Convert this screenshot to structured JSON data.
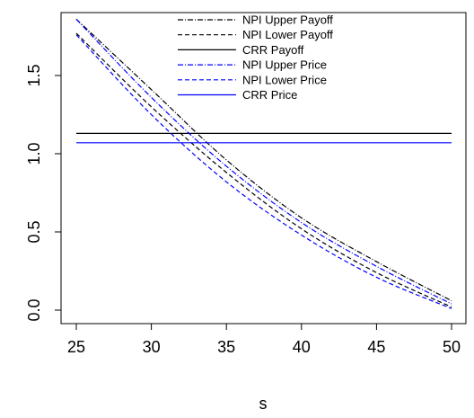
{
  "chart_data": {
    "type": "line",
    "title": "",
    "xlabel": "s",
    "ylabel": "",
    "xlim": [
      25,
      50
    ],
    "ylim": [
      0,
      1.85
    ],
    "x_ticks": [
      25,
      30,
      35,
      40,
      45,
      50
    ],
    "x_tick_labels": [
      "25",
      "30",
      "35",
      "40",
      "45",
      "50"
    ],
    "y_ticks": [
      0.0,
      0.5,
      1.0,
      1.5
    ],
    "y_tick_labels": [
      "0.0",
      "0.5",
      "1.0",
      "1.5"
    ],
    "grid": false,
    "legend_position": "top-center",
    "x": [
      25,
      30,
      35,
      40,
      45,
      50
    ],
    "series": [
      {
        "name": "NPI Upper Payoff",
        "color": "#000000",
        "dash": "dotdash",
        "values": [
          1.86,
          1.41,
          0.96,
          0.59,
          0.31,
          0.06
        ]
      },
      {
        "name": "NPI Lower Payoff",
        "color": "#000000",
        "dash": "dashed",
        "values": [
          1.77,
          1.3,
          0.88,
          0.52,
          0.24,
          0.02
        ]
      },
      {
        "name": "CRR Payoff",
        "color": "#000000",
        "dash": "solid",
        "values": [
          1.13,
          1.13,
          1.13,
          1.13,
          1.13,
          1.13
        ]
      },
      {
        "name": "NPI Upper Price",
        "color": "#0000ff",
        "dash": "dotdash",
        "values": [
          1.86,
          1.36,
          0.92,
          0.56,
          0.28,
          0.04
        ]
      },
      {
        "name": "NPI Lower Price",
        "color": "#0000ff",
        "dash": "dashed",
        "values": [
          1.76,
          1.25,
          0.82,
          0.48,
          0.21,
          0.01
        ]
      },
      {
        "name": "CRR Price",
        "color": "#0000ff",
        "dash": "solid",
        "values": [
          1.07,
          1.07,
          1.07,
          1.07,
          1.07,
          1.07
        ]
      }
    ]
  }
}
